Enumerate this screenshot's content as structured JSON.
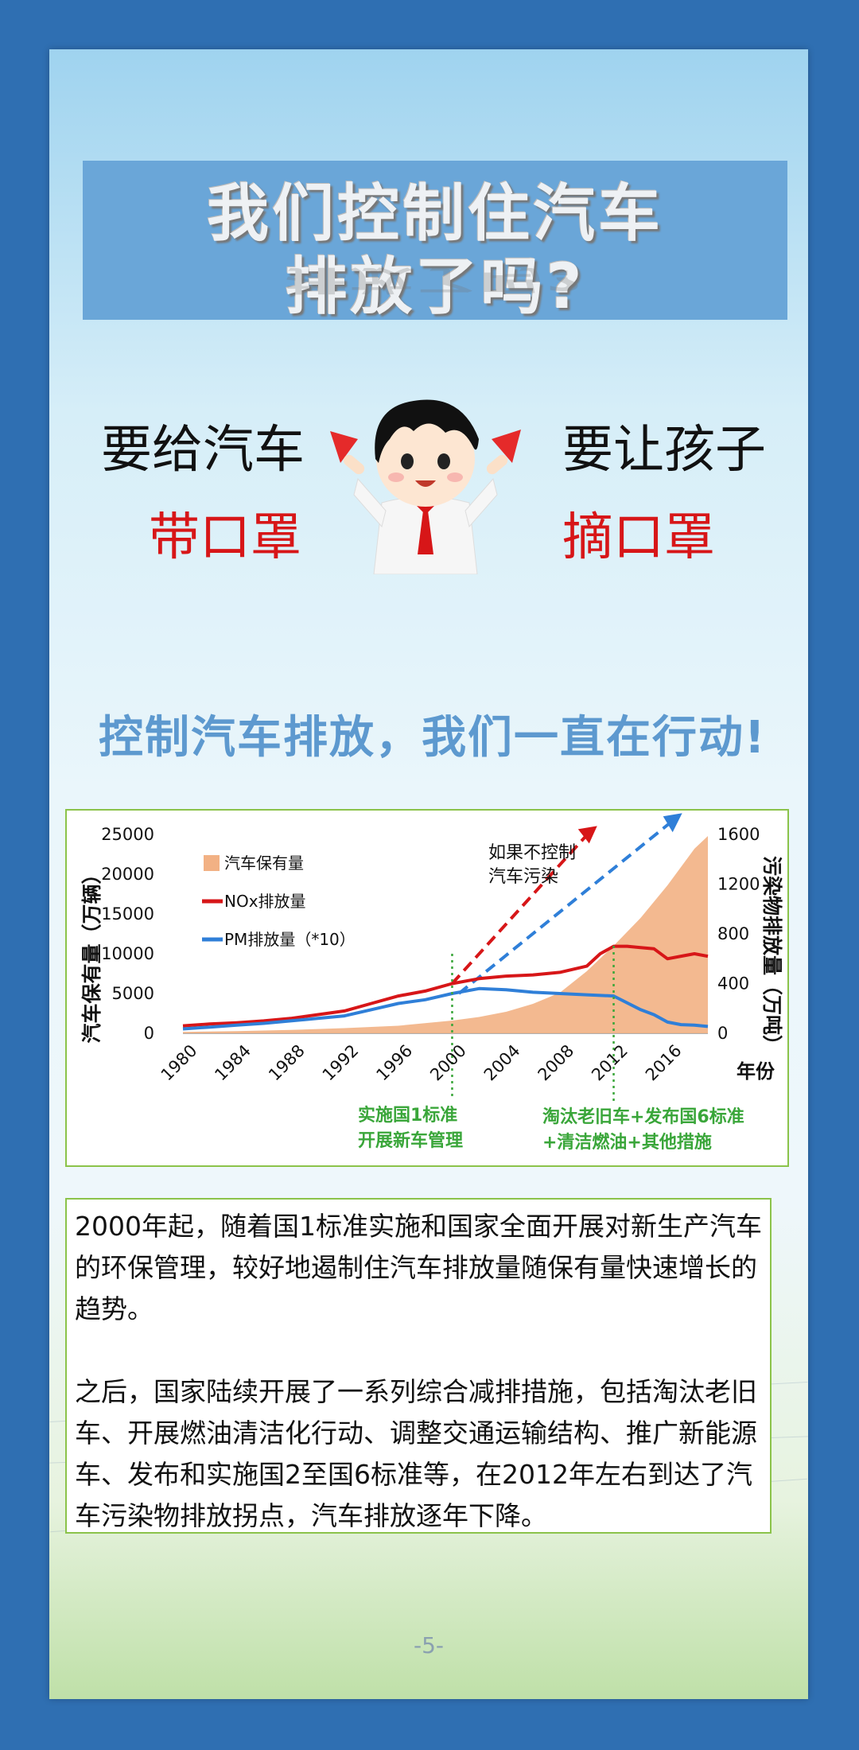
{
  "title": {
    "line1": "我们控制住汽车",
    "line2": "排放了吗?"
  },
  "slogans": {
    "left_top": "要给汽车",
    "left_bottom": "带口罩",
    "right_top": "要让孩子",
    "right_bottom": "摘口罩"
  },
  "headline": "控制汽车排放，我们一直在行动!",
  "colors": {
    "frame": "#2f6fb2",
    "title_band": "#6aa6d8",
    "red_text": "#d71618",
    "headline": "#5d99cf",
    "green": "#3aa63a",
    "area": "#f2b184",
    "nox": "#d71618",
    "pm": "#2f7fd8"
  },
  "chart_data": {
    "type": "area",
    "x_ticks": [
      "1980",
      "1984",
      "1988",
      "1992",
      "1996",
      "2000",
      "2004",
      "2008",
      "2012",
      "2016"
    ],
    "x_label": "年份",
    "y_left_label": "汽车保有量（万辆）",
    "y_left_ticks": [
      "0",
      "5000",
      "10000",
      "15000",
      "20000",
      "25000"
    ],
    "y_left_range": [
      0,
      25000
    ],
    "y_right_label": "污染物排放量（万吨）",
    "y_right_ticks": [
      "0",
      "400",
      "800",
      "1200",
      "1600"
    ],
    "y_right_range": [
      0,
      1600
    ],
    "x_range": [
      1980,
      2019
    ],
    "series": [
      {
        "name": "汽车保有量",
        "kind": "area",
        "axis": "left",
        "color": "#f2b184",
        "points": [
          [
            1980,
            180
          ],
          [
            1984,
            270
          ],
          [
            1988,
            420
          ],
          [
            1992,
            650
          ],
          [
            1996,
            950
          ],
          [
            2000,
            1600
          ],
          [
            2002,
            2050
          ],
          [
            2004,
            2700
          ],
          [
            2006,
            3700
          ],
          [
            2008,
            5100
          ],
          [
            2010,
            7800
          ],
          [
            2012,
            11000
          ],
          [
            2014,
            14500
          ],
          [
            2016,
            18600
          ],
          [
            2018,
            23200
          ],
          [
            2019,
            24800
          ]
        ]
      },
      {
        "name": "NOx排放量",
        "kind": "line",
        "axis": "right",
        "color": "#d71618",
        "points": [
          [
            1980,
            60
          ],
          [
            1982,
            75
          ],
          [
            1984,
            85
          ],
          [
            1986,
            100
          ],
          [
            1988,
            120
          ],
          [
            1990,
            150
          ],
          [
            1992,
            180
          ],
          [
            1994,
            240
          ],
          [
            1996,
            300
          ],
          [
            1998,
            340
          ],
          [
            2000,
            400
          ],
          [
            2002,
            440
          ],
          [
            2004,
            460
          ],
          [
            2006,
            470
          ],
          [
            2008,
            490
          ],
          [
            2010,
            540
          ],
          [
            2011,
            640
          ],
          [
            2012,
            700
          ],
          [
            2013,
            700
          ],
          [
            2014,
            690
          ],
          [
            2015,
            680
          ],
          [
            2016,
            600
          ],
          [
            2017,
            620
          ],
          [
            2018,
            640
          ],
          [
            2019,
            620
          ]
        ]
      },
      {
        "name": "PM排放量（*10）",
        "kind": "line",
        "axis": "right",
        "color": "#2f7fd8",
        "points": [
          [
            1980,
            35
          ],
          [
            1982,
            50
          ],
          [
            1984,
            65
          ],
          [
            1986,
            80
          ],
          [
            1988,
            100
          ],
          [
            1990,
            120
          ],
          [
            1992,
            140
          ],
          [
            1994,
            190
          ],
          [
            1996,
            240
          ],
          [
            1998,
            270
          ],
          [
            2000,
            320
          ],
          [
            2002,
            360
          ],
          [
            2004,
            350
          ],
          [
            2006,
            330
          ],
          [
            2008,
            320
          ],
          [
            2010,
            310
          ],
          [
            2012,
            300
          ],
          [
            2014,
            190
          ],
          [
            2015,
            150
          ],
          [
            2016,
            90
          ],
          [
            2017,
            70
          ],
          [
            2018,
            65
          ],
          [
            2019,
            55
          ]
        ]
      }
    ],
    "legend_position": "top-left",
    "annotations": {
      "projection_text_1": "如果不控制",
      "projection_text_2": "汽车污染",
      "marker_2000_line1": "实施国1标准",
      "marker_2000_line2": "开展新车管理",
      "marker_2012_line1": "淘汰老旧车+发布国6标准",
      "marker_2012_line2": "+清洁燃油+其他措施"
    }
  },
  "body_text": {
    "paragraph1": "2000年起，随着国1标准实施和国家全面开展对新生产汽车的环保管理，较好地遏制住汽车排放量随保有量快速增长的趋势。",
    "paragraph2": "之后，国家陆续开展了一系列综合减排措施，包括淘汰老旧车、开展燃油清洁化行动、调整交通运输结构、推广新能源车、发布和实施国2至国6标准等，在2012年左右到达了汽车污染物排放拐点，汽车排放逐年下降。"
  },
  "page_number": "-5-"
}
